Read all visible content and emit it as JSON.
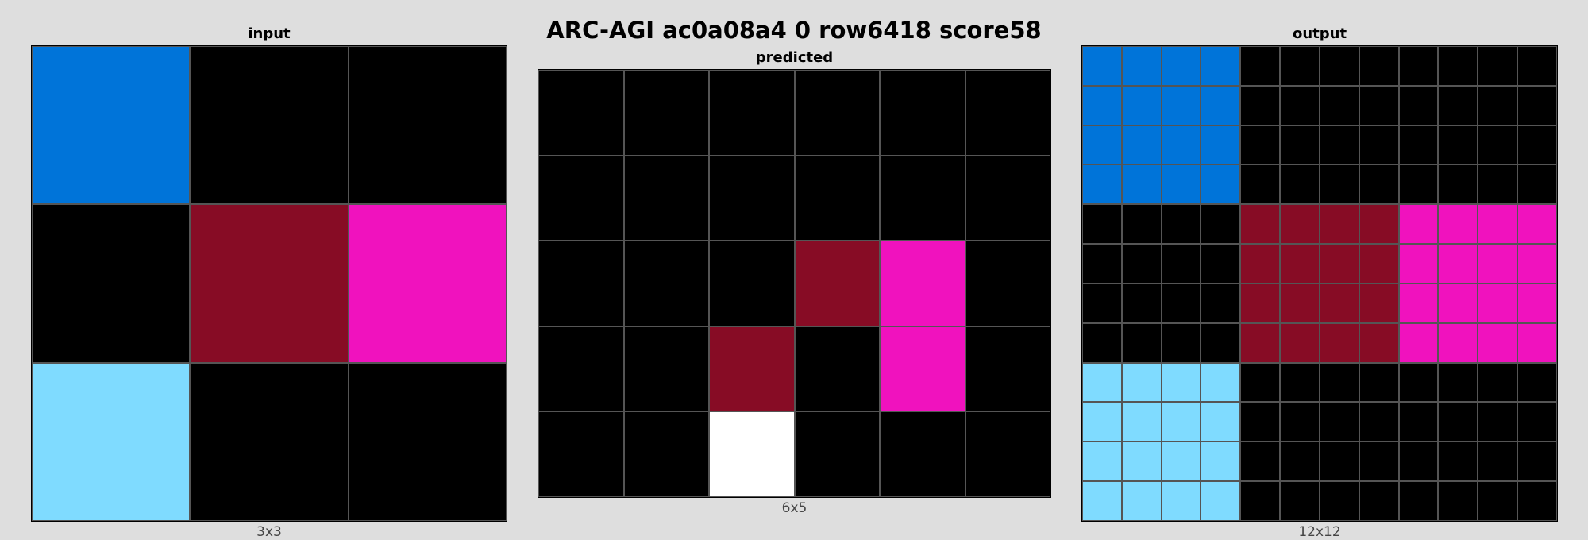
{
  "title": "ARC-AGI ac0a08a4 0 row6418 score58",
  "palette": {
    "0": "#000000",
    "1": "#0074d9",
    "5": "#ffffff",
    "8": "#870c25",
    "6": "#f012be",
    "9": "#7fdbff"
  },
  "panels": [
    {
      "id": "input",
      "label": "input",
      "dims": "3x3",
      "grid": [
        [
          1,
          0,
          0
        ],
        [
          0,
          8,
          6
        ],
        [
          9,
          0,
          0
        ]
      ]
    },
    {
      "id": "predicted",
      "label": "predicted",
      "dims": "6x5",
      "grid": [
        [
          0,
          0,
          0,
          0,
          0,
          0
        ],
        [
          0,
          0,
          0,
          0,
          0,
          0
        ],
        [
          0,
          0,
          0,
          8,
          6,
          0
        ],
        [
          0,
          0,
          8,
          0,
          6,
          0
        ],
        [
          0,
          0,
          5,
          0,
          0,
          0
        ]
      ]
    },
    {
      "id": "output",
      "label": "output",
      "dims": "12x12",
      "grid": [
        [
          1,
          1,
          1,
          1,
          0,
          0,
          0,
          0,
          0,
          0,
          0,
          0
        ],
        [
          1,
          1,
          1,
          1,
          0,
          0,
          0,
          0,
          0,
          0,
          0,
          0
        ],
        [
          1,
          1,
          1,
          1,
          0,
          0,
          0,
          0,
          0,
          0,
          0,
          0
        ],
        [
          1,
          1,
          1,
          1,
          0,
          0,
          0,
          0,
          0,
          0,
          0,
          0
        ],
        [
          0,
          0,
          0,
          0,
          8,
          8,
          8,
          8,
          6,
          6,
          6,
          6
        ],
        [
          0,
          0,
          0,
          0,
          8,
          8,
          8,
          8,
          6,
          6,
          6,
          6
        ],
        [
          0,
          0,
          0,
          0,
          8,
          8,
          8,
          8,
          6,
          6,
          6,
          6
        ],
        [
          0,
          0,
          0,
          0,
          8,
          8,
          8,
          8,
          6,
          6,
          6,
          6
        ],
        [
          9,
          9,
          9,
          9,
          0,
          0,
          0,
          0,
          0,
          0,
          0,
          0
        ],
        [
          9,
          9,
          9,
          9,
          0,
          0,
          0,
          0,
          0,
          0,
          0,
          0
        ],
        [
          9,
          9,
          9,
          9,
          0,
          0,
          0,
          0,
          0,
          0,
          0,
          0
        ],
        [
          9,
          9,
          9,
          9,
          0,
          0,
          0,
          0,
          0,
          0,
          0,
          0
        ]
      ]
    }
  ]
}
